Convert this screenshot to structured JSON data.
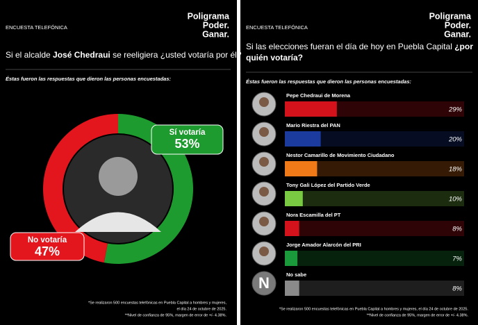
{
  "chart_data": [
    {
      "type": "pie",
      "header": "ENCUESTA TELEFÓNICA",
      "brand": [
        "Poligrama",
        "Poder.",
        "Ganar."
      ],
      "title": [
        [
          {
            "text": "Si el alcalde ",
            "bold": false
          },
          {
            "text": "José Chedraui",
            "bold": true
          },
          {
            "text": " se reeligiera ¿usted votaría por él?",
            "bold": false
          }
        ]
      ],
      "subtitle": "Éstas fueron las respuestas que dieron las personas encuestadas:",
      "categories": [
        "Sí votaría",
        "No votaría"
      ],
      "values": [
        53,
        47
      ],
      "value_labels": [
        "53%",
        "47%"
      ],
      "colors": [
        "#1e9b2f",
        "#e3151d"
      ],
      "notes": [
        "*Se realizaron 500 encuestas telefónicas en Puebla Capital a hombres y mujeres,",
        "el día 24 de octubre de 2025.",
        "**Nivel de confianza de 95%, margen de error de +/- 4.38%."
      ]
    },
    {
      "type": "bar",
      "header": "ENCUESTA TELEFÓNICA",
      "brand": [
        "Poligrama",
        "Poder.",
        "Ganar."
      ],
      "title": [
        [
          {
            "text": "Si las elecciones fueran el día de hoy en Puebla Capital ",
            "bold": false
          },
          {
            "text": "¿por",
            "bold": true
          }
        ],
        [
          {
            "text": "quién votaría?",
            "bold": true
          }
        ]
      ],
      "subtitle": "Éstas fueron las respuestas que dieron las personas encuestadas:",
      "categories": [
        "Pepe Chedraui de Morena",
        "Mario Riestra del PAN",
        "Nestor Camarillo de Movimiento Ciudadano",
        "Tony Gali López del Partido Verde",
        "Nora Escamilla del PT",
        "Jorge Amador Alarcón del PRI",
        "No sabe"
      ],
      "values": [
        29,
        20,
        18,
        10,
        8,
        7,
        8
      ],
      "value_labels": [
        "29%",
        "20%",
        "18%",
        "10%",
        "8%",
        "7%",
        "8%"
      ],
      "colors": [
        "#d3121b",
        "#1c3b9e",
        "#f07a18",
        "#7ac943",
        "#d3121b",
        "#1a9a3a",
        "#8a8a8a"
      ],
      "xlim": [
        0,
        100
      ],
      "icon_label": "N",
      "notes": [
        "*Se realizaron 500 encuestas telefónicas en Puebla Capital a hombres y mujeres, el día 24 de octubre de 2025.",
        "**Nivel de confianza de 95%, margen de error de +/- 4.38%."
      ]
    }
  ]
}
